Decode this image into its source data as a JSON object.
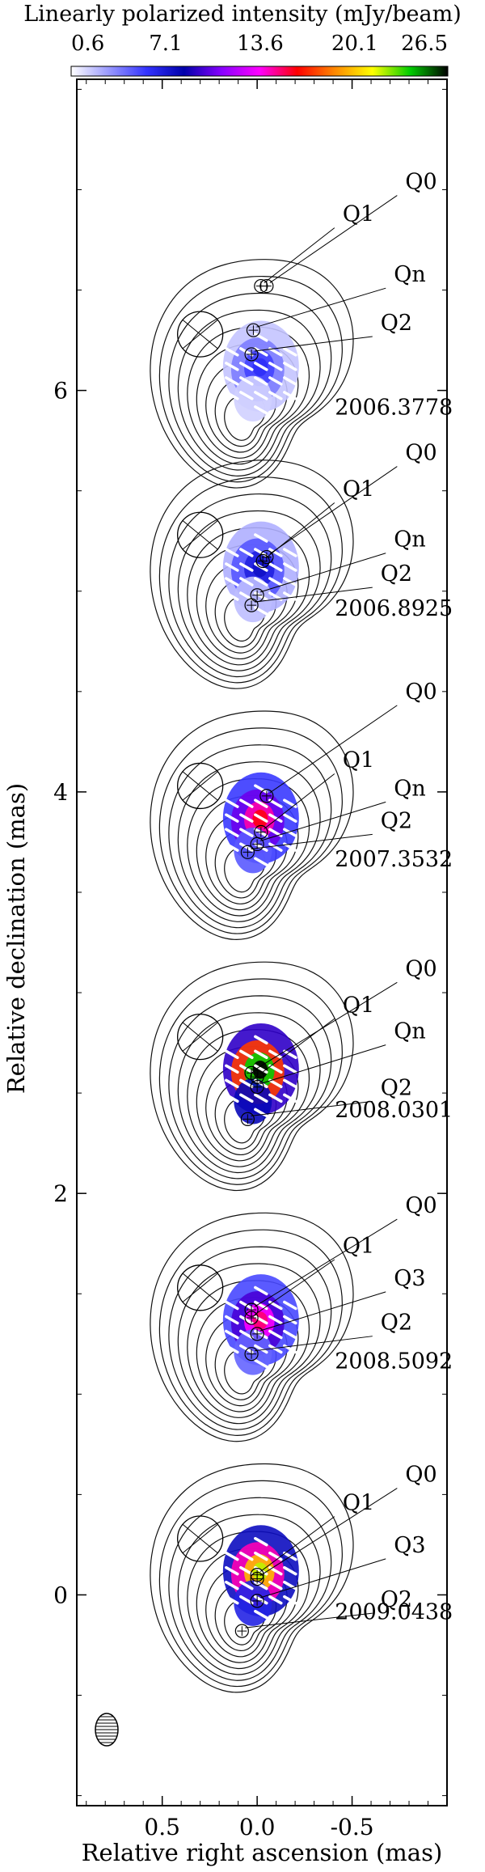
{
  "colorbar": {
    "title": "Linearly polarized intensity (mJy/beam)",
    "ticks": [
      "0.6",
      "7.1",
      "13.6",
      "20.1",
      "26.5"
    ],
    "min": 0.6,
    "max": 26.5,
    "gradient": [
      "#ffffff",
      "#9999ff",
      "#3333ff",
      "#0000aa",
      "#8800ff",
      "#ff00ff",
      "#ff0000",
      "#ff8800",
      "#ffff00",
      "#00cc00",
      "#000000"
    ]
  },
  "chart_data": {
    "type": "contour",
    "xlabel": "Relative right ascension (mas)",
    "ylabel": "Relative declination (mas)",
    "xlim": [
      0.95,
      -1.0
    ],
    "ylim": [
      -1.05,
      7.55
    ],
    "x_ticks": [
      {
        "value": 0.5,
        "label": "0.5"
      },
      {
        "value": 0.0,
        "label": "0.0"
      },
      {
        "value": -0.5,
        "label": "-0.5"
      }
    ],
    "y_ticks": [
      {
        "value": 0,
        "label": "0"
      },
      {
        "value": 2,
        "label": "2"
      },
      {
        "value": 4,
        "label": "4"
      },
      {
        "value": 6,
        "label": "6"
      }
    ],
    "epochs": [
      {
        "label": "2006.3778",
        "y_offset": 6.0,
        "peak": 6.0,
        "components": [
          {
            "name": "Q0",
            "x": -0.05,
            "y": 6.52
          },
          {
            "name": "Q1",
            "x": -0.02,
            "y": 6.52
          },
          {
            "name": "Qn",
            "x": 0.02,
            "y": 6.3
          },
          {
            "name": "Q2",
            "x": 0.03,
            "y": 6.18
          }
        ]
      },
      {
        "label": "2006.8925",
        "y_offset": 5.0,
        "peak": 7.5,
        "components": [
          {
            "name": "Q0",
            "x": -0.05,
            "y": 5.17
          },
          {
            "name": "Q1",
            "x": -0.03,
            "y": 5.15
          },
          {
            "name": "Qn",
            "x": 0.0,
            "y": 4.98
          },
          {
            "name": "Q2",
            "x": 0.03,
            "y": 4.93
          }
        ]
      },
      {
        "label": "2007.3532",
        "y_offset": 3.75,
        "peak": 16.0,
        "components": [
          {
            "name": "Q0",
            "x": -0.05,
            "y": 3.98
          },
          {
            "name": "Q1",
            "x": -0.02,
            "y": 3.8
          },
          {
            "name": "Qn",
            "x": 0.0,
            "y": 3.74
          },
          {
            "name": "Q2",
            "x": 0.05,
            "y": 3.7
          }
        ]
      },
      {
        "label": "2008.0301",
        "y_offset": 2.5,
        "peak": 26.5,
        "components": [
          {
            "name": "Q0",
            "x": 0.03,
            "y": 2.6
          },
          {
            "name": "Q1",
            "x": 0.0,
            "y": 2.58
          },
          {
            "name": "Qn",
            "x": 0.0,
            "y": 2.53
          },
          {
            "name": "Q2",
            "x": 0.05,
            "y": 2.37
          }
        ]
      },
      {
        "label": "2008.5092",
        "y_offset": 1.25,
        "peak": 15.0,
        "components": [
          {
            "name": "Q0",
            "x": 0.03,
            "y": 1.42
          },
          {
            "name": "Q1",
            "x": 0.03,
            "y": 1.38
          },
          {
            "name": "Q3",
            "x": 0.0,
            "y": 1.3
          },
          {
            "name": "Q2",
            "x": 0.03,
            "y": 1.2
          }
        ]
      },
      {
        "label": "2009.0438",
        "y_offset": 0.0,
        "peak": 22.0,
        "components": [
          {
            "name": "Q0",
            "x": 0.0,
            "y": 0.08
          },
          {
            "name": "Q1",
            "x": 0.0,
            "y": 0.1
          },
          {
            "name": "Q3",
            "x": 0.0,
            "y": -0.03
          },
          {
            "name": "Q2",
            "x": 0.08,
            "y": -0.18
          }
        ]
      }
    ]
  }
}
